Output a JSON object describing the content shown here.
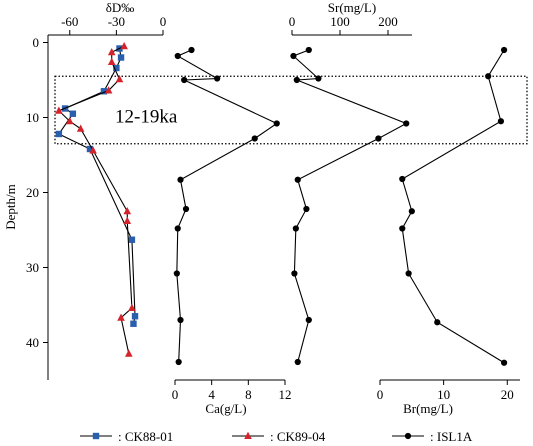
{
  "chart_data": {
    "type": "line",
    "y_axis": {
      "label": "Depth/m",
      "range": [
        -1,
        45
      ],
      "inverted": true,
      "ticks": [
        "0",
        "10",
        "20",
        "30",
        "40"
      ],
      "tick_values": [
        0,
        10,
        20,
        30,
        40
      ]
    },
    "panels": [
      {
        "id": "dD",
        "xlabel": "δD‰",
        "xlabel_position": "top",
        "xrange": [
          -74,
          0
        ],
        "ticks": [
          "-60",
          "-30",
          "0"
        ],
        "tick_values": [
          -60,
          -30,
          0
        ],
        "series": [
          {
            "legend_key": "ck88",
            "color": "#2a5fad",
            "marker": "square",
            "points": [
              {
                "x": -28,
                "y": 0.8
              },
              {
                "x": -27,
                "y": 2.0
              },
              {
                "x": -30,
                "y": 3.4
              },
              {
                "x": -38,
                "y": 6.5
              },
              {
                "x": -63,
                "y": 8.8
              },
              {
                "x": -58,
                "y": 9.5
              },
              {
                "x": -67,
                "y": 12.2
              },
              {
                "x": -47,
                "y": 14.2
              },
              {
                "x": -20,
                "y": 26.3
              },
              {
                "x": -18,
                "y": 36.5
              },
              {
                "x": -19,
                "y": 37.5
              }
            ]
          },
          {
            "legend_key": "ck89",
            "color": "#d4232a",
            "marker": "triangle",
            "points": [
              {
                "x": -25,
                "y": 0.5
              },
              {
                "x": -33,
                "y": 1.3
              },
              {
                "x": -33,
                "y": 2.6
              },
              {
                "x": -28,
                "y": 4.9
              },
              {
                "x": -35,
                "y": 6.4
              },
              {
                "x": -67,
                "y": 9.1
              },
              {
                "x": -60,
                "y": 10.5
              },
              {
                "x": -53,
                "y": 11.5
              },
              {
                "x": -45,
                "y": 14.4
              },
              {
                "x": -23,
                "y": 22.5
              },
              {
                "x": -23,
                "y": 23.8
              },
              {
                "x": -20,
                "y": 35.4
              },
              {
                "x": -27,
                "y": 36.7
              },
              {
                "x": -22,
                "y": 41.5
              }
            ]
          }
        ]
      },
      {
        "id": "Ca",
        "xlabel": "Ca(g/L)",
        "xlabel_position": "bottom",
        "xrange": [
          0,
          12
        ],
        "ticks": [
          "0",
          "4",
          "8",
          "12"
        ],
        "tick_values": [
          0,
          4,
          8,
          12
        ],
        "series": [
          {
            "legend_key": "isl1a",
            "color": "#000000",
            "marker": "circle",
            "points": [
              {
                "x": 1.8,
                "y": 1.0
              },
              {
                "x": 0.3,
                "y": 1.8
              },
              {
                "x": 4.6,
                "y": 4.8
              },
              {
                "x": 1.0,
                "y": 5.0
              },
              {
                "x": 11.1,
                "y": 10.8
              },
              {
                "x": 8.7,
                "y": 12.8
              },
              {
                "x": 0.6,
                "y": 18.3
              },
              {
                "x": 1.2,
                "y": 22.2
              },
              {
                "x": 0.3,
                "y": 24.8
              },
              {
                "x": 0.2,
                "y": 30.8
              },
              {
                "x": 0.6,
                "y": 37.0
              },
              {
                "x": 0.4,
                "y": 42.6
              }
            ]
          }
        ]
      },
      {
        "id": "Sr",
        "xlabel": "Sr(mg/L)",
        "xlabel_position": "top",
        "xrange": [
          0,
          250
        ],
        "ticks": [
          "0",
          "100",
          "200"
        ],
        "tick_values": [
          0,
          100,
          200
        ],
        "series": [
          {
            "legend_key": "isl1a",
            "color": "#000000",
            "marker": "circle",
            "points": [
              {
                "x": 35,
                "y": 1.0
              },
              {
                "x": 3,
                "y": 1.8
              },
              {
                "x": 55,
                "y": 4.8
              },
              {
                "x": 10,
                "y": 5.0
              },
              {
                "x": 238,
                "y": 10.8
              },
              {
                "x": 180,
                "y": 12.8
              },
              {
                "x": 12,
                "y": 18.3
              },
              {
                "x": 30,
                "y": 22.2
              },
              {
                "x": 8,
                "y": 24.8
              },
              {
                "x": 5,
                "y": 30.8
              },
              {
                "x": 35,
                "y": 37.0
              },
              {
                "x": 12,
                "y": 42.6
              }
            ]
          }
        ]
      },
      {
        "id": "Br",
        "xlabel": "Br(mg/L)",
        "xlabel_position": "bottom",
        "xrange": [
          0,
          22
        ],
        "ticks": [
          "0",
          "10",
          "20"
        ],
        "tick_values": [
          0,
          10,
          20
        ],
        "series": [
          {
            "legend_key": "isl1a",
            "color": "#000000",
            "marker": "circle",
            "points": [
              {
                "x": 19.5,
                "y": 1.0
              },
              {
                "x": 17.0,
                "y": 4.5
              },
              {
                "x": 19.0,
                "y": 10.5
              },
              {
                "x": 3.5,
                "y": 18.2
              },
              {
                "x": 5.0,
                "y": 22.5
              },
              {
                "x": 3.5,
                "y": 24.8
              },
              {
                "x": 4.5,
                "y": 30.8
              },
              {
                "x": 9.0,
                "y": 37.3
              },
              {
                "x": 19.5,
                "y": 42.7
              }
            ]
          }
        ]
      }
    ],
    "annotation": {
      "text": "12-19ka",
      "depth_range": [
        4.5,
        13.5
      ],
      "box_style": "dotted"
    },
    "legend": {
      "placement": "bottom",
      "entries": [
        {
          "key": "ck88",
          "label": ": CK88-01",
          "color": "#2a5fad",
          "marker": "square"
        },
        {
          "key": "ck89",
          "label": ": CK89-04",
          "color": "#d4232a",
          "marker": "triangle"
        },
        {
          "key": "isl1a",
          "label": ": ISL1A",
          "color": "#000000",
          "marker": "circle"
        }
      ]
    }
  }
}
